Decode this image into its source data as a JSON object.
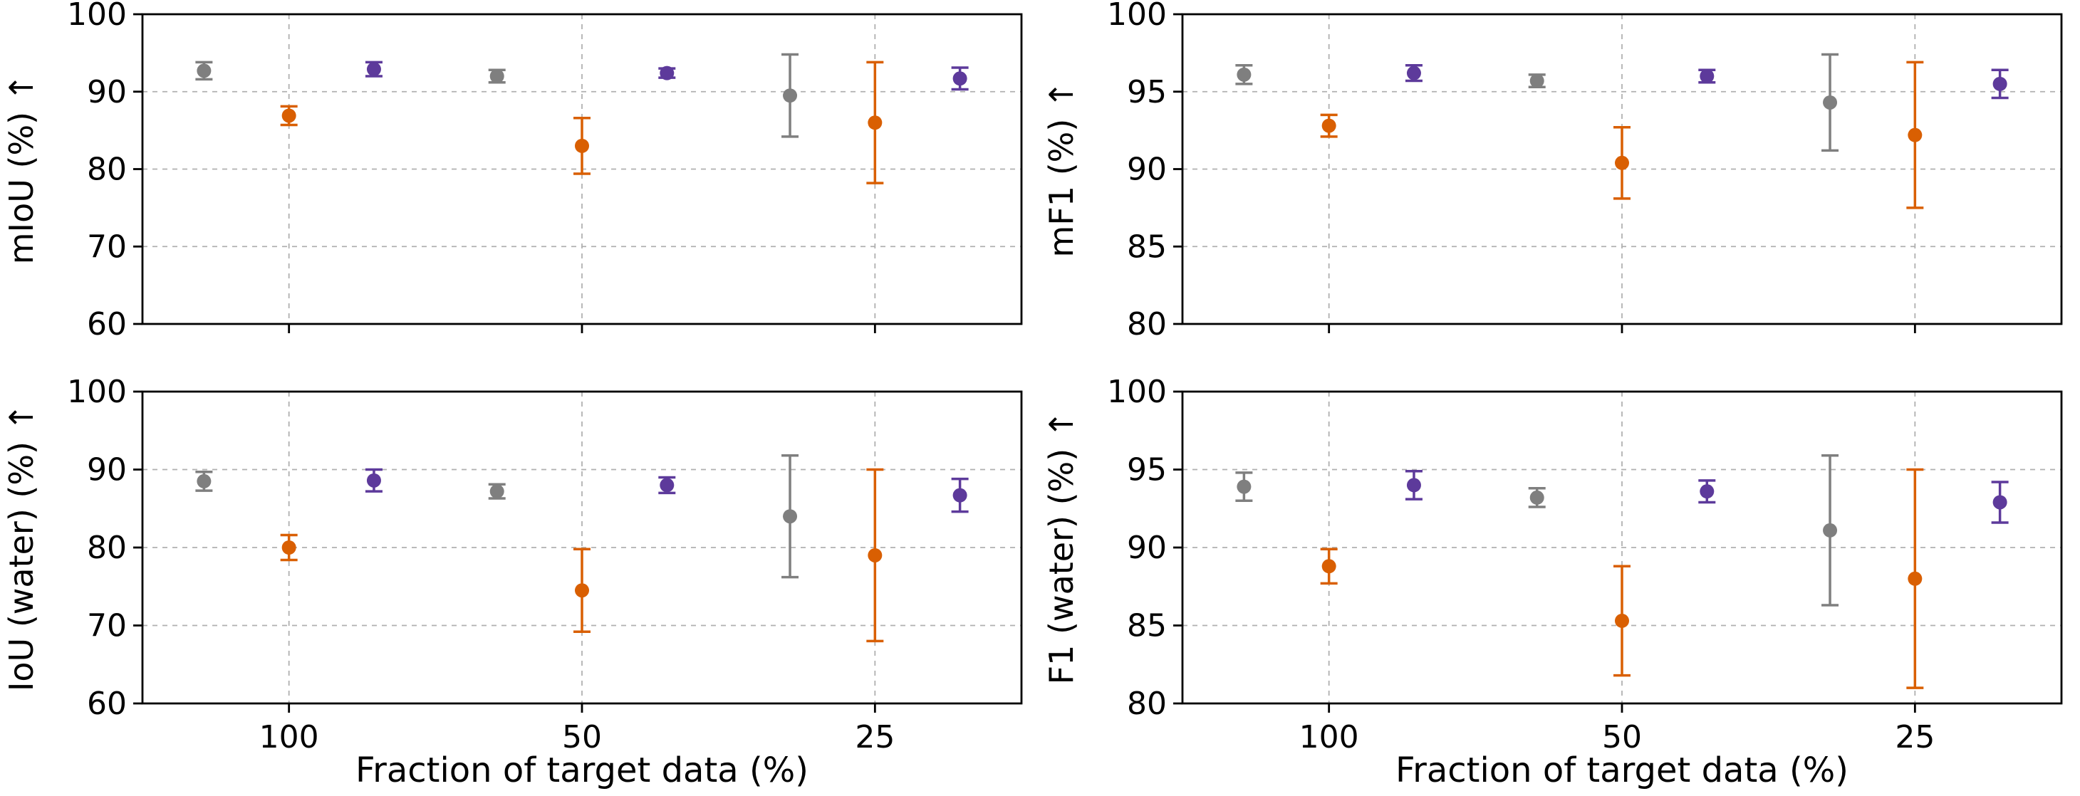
{
  "figure": {
    "background": "#ffffff",
    "xlabel": "Fraction of target data (%)",
    "categories": [
      "100",
      "50",
      "25"
    ],
    "series_colors": {
      "gray": "#7f7f7f",
      "orange": "#d95f02",
      "purple": "#5d3a9b"
    },
    "grid_color": "#b0b0b0",
    "axis_color": "#000000"
  },
  "chart_data": [
    {
      "type": "scatter",
      "subplot": "top-left",
      "ylabel": "mIoU (%) ↑",
      "xlabel": "",
      "ylim": [
        60,
        100
      ],
      "yticks": [
        60,
        70,
        80,
        90,
        100
      ],
      "categories": [
        "100",
        "50",
        "25"
      ],
      "show_x_tick_labels": false,
      "show_x_label": false,
      "grid": true,
      "legend": "none",
      "series": [
        {
          "name": "gray",
          "color": "#7f7f7f",
          "values": [
            92.7,
            92.0,
            89.5
          ],
          "errors": [
            1.1,
            0.8,
            5.3
          ]
        },
        {
          "name": "orange",
          "color": "#d95f02",
          "values": [
            86.9,
            83.0,
            86.0
          ],
          "errors": [
            1.2,
            3.6,
            7.8
          ]
        },
        {
          "name": "purple",
          "color": "#5d3a9b",
          "values": [
            92.9,
            92.4,
            91.7
          ],
          "errors": [
            0.9,
            0.6,
            1.4
          ]
        }
      ]
    },
    {
      "type": "scatter",
      "subplot": "top-right",
      "ylabel": "mF1 (%) ↑",
      "xlabel": "",
      "ylim": [
        80,
        100
      ],
      "yticks": [
        80,
        85,
        90,
        95,
        100
      ],
      "categories": [
        "100",
        "50",
        "25"
      ],
      "show_x_tick_labels": false,
      "show_x_label": false,
      "grid": true,
      "legend": "none",
      "series": [
        {
          "name": "gray",
          "color": "#7f7f7f",
          "values": [
            96.1,
            95.7,
            94.3
          ],
          "errors": [
            0.6,
            0.4,
            3.1
          ]
        },
        {
          "name": "orange",
          "color": "#d95f02",
          "values": [
            92.8,
            90.4,
            92.2
          ],
          "errors": [
            0.7,
            2.3,
            4.7
          ]
        },
        {
          "name": "purple",
          "color": "#5d3a9b",
          "values": [
            96.2,
            96.0,
            95.5
          ],
          "errors": [
            0.5,
            0.4,
            0.9
          ]
        }
      ]
    },
    {
      "type": "scatter",
      "subplot": "bottom-left",
      "ylabel": "IoU (water) (%) ↑",
      "xlabel": "Fraction of target data (%)",
      "ylim": [
        60,
        100
      ],
      "yticks": [
        60,
        70,
        80,
        90,
        100
      ],
      "categories": [
        "100",
        "50",
        "25"
      ],
      "show_x_tick_labels": true,
      "show_x_label": true,
      "grid": true,
      "legend": "none",
      "series": [
        {
          "name": "gray",
          "color": "#7f7f7f",
          "values": [
            88.5,
            87.2,
            84.0
          ],
          "errors": [
            1.2,
            0.9,
            7.8
          ]
        },
        {
          "name": "orange",
          "color": "#d95f02",
          "values": [
            80.0,
            74.5,
            79.0
          ],
          "errors": [
            1.6,
            5.3,
            11.0
          ]
        },
        {
          "name": "purple",
          "color": "#5d3a9b",
          "values": [
            88.6,
            88.0,
            86.7
          ],
          "errors": [
            1.4,
            1.0,
            2.1
          ]
        }
      ]
    },
    {
      "type": "scatter",
      "subplot": "bottom-right",
      "ylabel": "F1 (water) (%) ↑",
      "xlabel": "Fraction of target data (%)",
      "ylim": [
        80,
        100
      ],
      "yticks": [
        80,
        85,
        90,
        95,
        100
      ],
      "categories": [
        "100",
        "50",
        "25"
      ],
      "show_x_tick_labels": true,
      "show_x_label": true,
      "grid": true,
      "legend": "none",
      "series": [
        {
          "name": "gray",
          "color": "#7f7f7f",
          "values": [
            93.9,
            93.2,
            91.1
          ],
          "errors": [
            0.9,
            0.6,
            4.8
          ]
        },
        {
          "name": "orange",
          "color": "#d95f02",
          "values": [
            88.8,
            85.3,
            88.0
          ],
          "errors": [
            1.1,
            3.5,
            7.0
          ]
        },
        {
          "name": "purple",
          "color": "#5d3a9b",
          "values": [
            94.0,
            93.6,
            92.9
          ],
          "errors": [
            0.9,
            0.7,
            1.3
          ]
        }
      ]
    }
  ]
}
